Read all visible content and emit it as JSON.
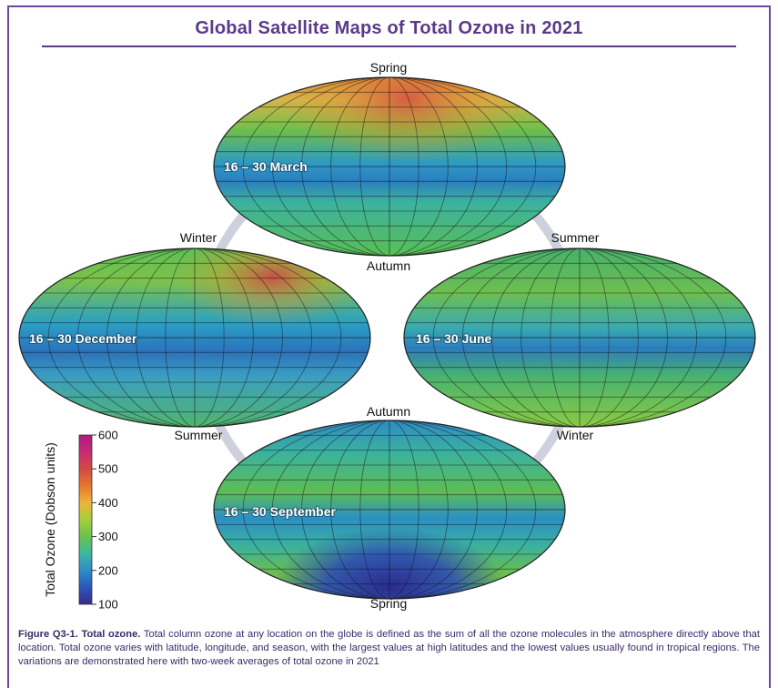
{
  "title": "Global Satellite Maps of Total Ozone in 2021",
  "maps": [
    {
      "id": "march",
      "date_label": "16 – 30 March",
      "season_top": "Spring",
      "season_bottom": "Autumn"
    },
    {
      "id": "december",
      "date_label": "16 – 30 December",
      "season_top": "Winter",
      "season_bottom": "Summer"
    },
    {
      "id": "june",
      "date_label": "16 – 30 June",
      "season_top": "Summer",
      "season_bottom": "Winter"
    },
    {
      "id": "september",
      "date_label": "16 – 30 September",
      "season_top": "Autumn",
      "season_bottom": "Spring"
    }
  ],
  "colorbar": {
    "label": "Total Ozone (Dobson units)",
    "ticks": [
      "600",
      "500",
      "400",
      "300",
      "200",
      "100"
    ],
    "min": 100,
    "max": 600,
    "colors": [
      "#3a2a8f",
      "#2b56b8",
      "#2f8cc8",
      "#3bb7a1",
      "#69c24d",
      "#a6cf3b",
      "#f0b33a",
      "#e8762f",
      "#d34a41",
      "#c52c74",
      "#b0197f"
    ]
  },
  "caption": {
    "figure_label": "Figure Q3-1. Total ozone.",
    "text": " Total column ozone at any location on the globe is defined as the sum of all the ozone molecules in the atmosphere directly above that location. Total ozone varies with latitude, longitude, and season, with the largest values at high latitudes and the lowest values usually found in tropical regions. The variations are demonstrated here with two-week averages of total ozone in 2021"
  }
}
